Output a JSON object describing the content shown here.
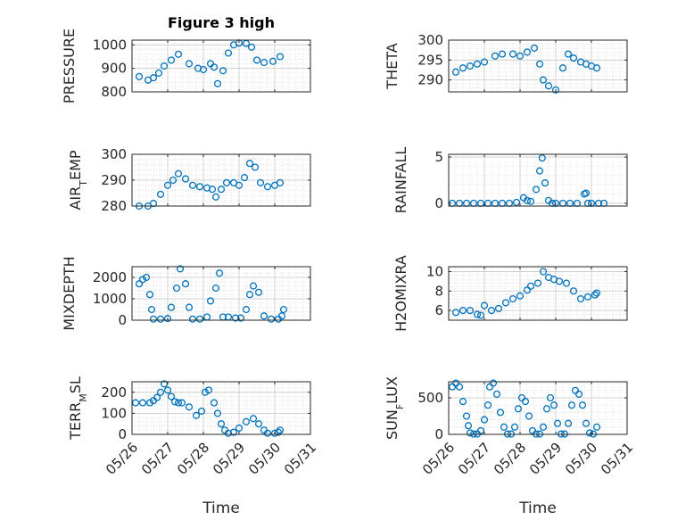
{
  "figure": {
    "background": "#ffffff",
    "marker_color": "#0072bd"
  },
  "chart_data": [
    {
      "type": "scatter",
      "title": "Figure 3 high",
      "ylabel_parts": [
        "PRESSURE"
      ],
      "xlabel": "",
      "x_ticks": [
        26,
        27,
        28,
        29,
        30,
        31
      ],
      "x_tick_labels": [],
      "ylim": [
        800,
        1020
      ],
      "y_ticks": [
        800,
        900,
        1000
      ],
      "y_tick_labels": [
        "800",
        "900",
        "1000"
      ],
      "grid": true,
      "series": [
        {
          "x": [
            26.2,
            26.45,
            26.6,
            26.75,
            26.9,
            27.1,
            27.3,
            27.6,
            27.85,
            28.0,
            28.2,
            28.3,
            28.4,
            28.55,
            28.7,
            28.85,
            29.0,
            29.2,
            29.35,
            29.5,
            29.7,
            29.95,
            30.15
          ],
          "y": [
            865,
            850,
            860,
            880,
            910,
            935,
            960,
            920,
            900,
            895,
            920,
            905,
            835,
            890,
            965,
            1000,
            1008,
            1006,
            990,
            935,
            925,
            930,
            950
          ]
        }
      ]
    },
    {
      "type": "scatter",
      "title": "",
      "ylabel_parts": [
        "THETA"
      ],
      "xlabel": "",
      "x_ticks": [
        26,
        27,
        28,
        29,
        30,
        31
      ],
      "x_tick_labels": [],
      "ylim": [
        287,
        300
      ],
      "y_ticks": [
        290,
        295,
        300
      ],
      "y_tick_labels": [
        "290",
        "295",
        "300"
      ],
      "grid": true,
      "series": [
        {
          "x": [
            26.2,
            26.4,
            26.6,
            26.8,
            27.0,
            27.3,
            27.5,
            27.8,
            28.0,
            28.2,
            28.4,
            28.55,
            28.65,
            28.8,
            29.0,
            29.2,
            29.35,
            29.5,
            29.7,
            29.85,
            30.0,
            30.15
          ],
          "y": [
            292,
            293,
            293.5,
            294,
            294.5,
            296,
            296.5,
            296.5,
            296,
            297,
            298,
            294,
            290,
            288.5,
            287.5,
            293,
            296.5,
            295.5,
            294.5,
            294,
            293.5,
            293
          ]
        }
      ]
    },
    {
      "type": "scatter",
      "title": "",
      "ylabel_parts": [
        "AIR",
        "T",
        "EMP"
      ],
      "xlabel": "",
      "x_ticks": [
        26,
        27,
        28,
        29,
        30,
        31
      ],
      "x_tick_labels": [],
      "ylim": [
        280,
        300
      ],
      "y_ticks": [
        280,
        290,
        300
      ],
      "y_tick_labels": [
        "280",
        "290",
        "300"
      ],
      "grid": true,
      "series": [
        {
          "x": [
            26.2,
            26.45,
            26.6,
            26.8,
            27.0,
            27.15,
            27.3,
            27.5,
            27.7,
            27.9,
            28.1,
            28.25,
            28.35,
            28.5,
            28.65,
            28.85,
            29.0,
            29.15,
            29.3,
            29.45,
            29.6,
            29.8,
            30.0,
            30.15
          ],
          "y": [
            280,
            280,
            281,
            284.5,
            288,
            290,
            292.5,
            290.5,
            288,
            287.5,
            287,
            286.5,
            283.5,
            286.5,
            289,
            289,
            288,
            291,
            296.5,
            295,
            289,
            287.5,
            288,
            289
          ]
        }
      ]
    },
    {
      "type": "scatter",
      "title": "",
      "ylabel_parts": [
        "RAINFALL"
      ],
      "xlabel": "",
      "x_ticks": [
        26,
        27,
        28,
        29,
        30,
        31
      ],
      "x_tick_labels": [],
      "ylim": [
        -0.3,
        5.3
      ],
      "y_ticks": [
        0,
        5
      ],
      "y_tick_labels": [
        "0",
        "5"
      ],
      "grid": true,
      "series": [
        {
          "x": [
            26.1,
            26.3,
            26.5,
            26.7,
            26.9,
            27.1,
            27.3,
            27.5,
            27.7,
            27.9,
            28.1,
            28.2,
            28.3,
            28.45,
            28.55,
            28.62,
            28.7,
            28.8,
            28.9,
            29.0,
            29.2,
            29.4,
            29.6,
            29.8,
            29.85,
            29.9,
            30.0,
            30.2,
            30.35
          ],
          "y": [
            0,
            0,
            0,
            0,
            0,
            0,
            0,
            0,
            0,
            0.1,
            0.6,
            0.3,
            0.2,
            1.5,
            3.5,
            4.9,
            2.2,
            0.3,
            0,
            0,
            0,
            0,
            0,
            1.0,
            1.1,
            0,
            0,
            0,
            0
          ]
        }
      ]
    },
    {
      "type": "scatter",
      "title": "",
      "ylabel_parts": [
        "MIXDEPTH"
      ],
      "xlabel": "",
      "x_ticks": [
        26,
        27,
        28,
        29,
        30,
        31
      ],
      "x_tick_labels": [],
      "ylim": [
        0,
        2500
      ],
      "y_ticks": [
        0,
        1000,
        2000
      ],
      "y_tick_labels": [
        "0",
        "1000",
        "2000"
      ],
      "grid": true,
      "series": [
        {
          "x": [
            26.2,
            26.3,
            26.4,
            26.5,
            26.55,
            26.6,
            26.8,
            27.0,
            27.1,
            27.25,
            27.35,
            27.5,
            27.6,
            27.7,
            27.9,
            28.1,
            28.2,
            28.35,
            28.45,
            28.55,
            28.7,
            28.9,
            29.05,
            29.2,
            29.3,
            29.4,
            29.55,
            29.7,
            29.9,
            30.1,
            30.2,
            30.25
          ],
          "y": [
            1700,
            1900,
            2000,
            1200,
            500,
            50,
            50,
            80,
            600,
            1500,
            2400,
            1700,
            600,
            50,
            50,
            150,
            900,
            1500,
            2200,
            150,
            150,
            100,
            100,
            500,
            1200,
            1600,
            1300,
            200,
            50,
            50,
            200,
            500
          ]
        }
      ]
    },
    {
      "type": "scatter",
      "title": "",
      "ylabel_parts": [
        "H2OMIXRA"
      ],
      "xlabel": "",
      "x_ticks": [
        26,
        27,
        28,
        29,
        30,
        31
      ],
      "x_tick_labels": [],
      "ylim": [
        5,
        10.5
      ],
      "y_ticks": [
        6,
        8,
        10
      ],
      "y_tick_labels": [
        "6",
        "8",
        "10"
      ],
      "grid": true,
      "series": [
        {
          "x": [
            26.2,
            26.4,
            26.6,
            26.8,
            26.9,
            27.0,
            27.2,
            27.4,
            27.6,
            27.8,
            28.0,
            28.2,
            28.3,
            28.5,
            28.65,
            28.8,
            28.95,
            29.1,
            29.3,
            29.5,
            29.7,
            29.9,
            30.1,
            30.15
          ],
          "y": [
            5.8,
            6.0,
            6.0,
            5.6,
            5.5,
            6.5,
            6.0,
            6.2,
            6.8,
            7.2,
            7.5,
            8.1,
            8.5,
            8.8,
            10.0,
            9.4,
            9.2,
            9.0,
            8.8,
            8.0,
            7.2,
            7.4,
            7.6,
            7.8
          ]
        }
      ]
    },
    {
      "type": "scatter",
      "title": "",
      "ylabel_parts": [
        "TERR",
        "M",
        "SL"
      ],
      "xlabel": "Time",
      "x_ticks": [
        26,
        27,
        28,
        29,
        30,
        31
      ],
      "x_tick_labels": [
        "05/26",
        "05/27",
        "05/28",
        "05/29",
        "05/30",
        "05/31"
      ],
      "ylim": [
        0,
        250
      ],
      "y_ticks": [
        0,
        100,
        200
      ],
      "y_tick_labels": [
        "0",
        "100",
        "200"
      ],
      "grid": true,
      "series": [
        {
          "x": [
            26.1,
            26.3,
            26.5,
            26.6,
            26.7,
            26.8,
            26.9,
            27.0,
            27.1,
            27.2,
            27.3,
            27.4,
            27.6,
            27.8,
            27.95,
            28.05,
            28.15,
            28.3,
            28.4,
            28.5,
            28.6,
            28.7,
            28.85,
            29.0,
            29.2,
            29.4,
            29.55,
            29.7,
            29.8,
            30.0,
            30.1,
            30.15
          ],
          "y": [
            150,
            150,
            150,
            160,
            175,
            200,
            240,
            210,
            180,
            155,
            150,
            150,
            130,
            90,
            110,
            200,
            210,
            150,
            100,
            50,
            20,
            5,
            10,
            30,
            60,
            75,
            50,
            20,
            5,
            5,
            10,
            20
          ]
        }
      ]
    },
    {
      "type": "scatter",
      "title": "",
      "ylabel_parts": [
        "SUN",
        "F",
        "LUX"
      ],
      "xlabel": "Time",
      "x_ticks": [
        26,
        27,
        28,
        29,
        30,
        31
      ],
      "x_tick_labels": [
        "05/26",
        "05/27",
        "05/28",
        "05/29",
        "05/30",
        "05/31"
      ],
      "ylim": [
        0,
        720
      ],
      "y_ticks": [
        0,
        500
      ],
      "y_tick_labels": [
        "0",
        "500"
      ],
      "grid": true,
      "series": [
        {
          "x": [
            26.1,
            26.2,
            26.3,
            26.4,
            26.5,
            26.55,
            26.6,
            26.7,
            26.8,
            26.9,
            27.0,
            27.1,
            27.15,
            27.25,
            27.35,
            27.45,
            27.55,
            27.65,
            27.75,
            27.85,
            27.95,
            28.05,
            28.15,
            28.25,
            28.35,
            28.45,
            28.55,
            28.65,
            28.75,
            28.85,
            28.95,
            29.05,
            29.15,
            29.25,
            29.35,
            29.45,
            29.55,
            29.65,
            29.75,
            29.85,
            29.95,
            30.05,
            30.15
          ],
          "y": [
            650,
            700,
            650,
            450,
            250,
            120,
            20,
            5,
            5,
            50,
            200,
            400,
            650,
            700,
            550,
            300,
            100,
            5,
            5,
            100,
            350,
            500,
            450,
            250,
            50,
            5,
            5,
            100,
            350,
            500,
            400,
            150,
            5,
            5,
            150,
            400,
            600,
            550,
            400,
            150,
            20,
            5,
            100
          ]
        }
      ]
    }
  ]
}
